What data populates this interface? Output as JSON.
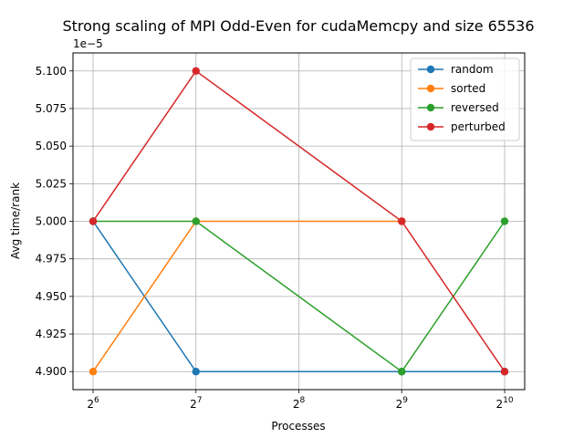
{
  "chart_data": {
    "type": "line",
    "title": "Strong scaling of MPI Odd-Even for cudaMemcpy and size 65536",
    "xlabel": "Processes",
    "ylabel": "Avg time/rank",
    "y_offset_label": "1e−5",
    "x_scale": "log2",
    "x": [
      64,
      128,
      512,
      1024
    ],
    "x_ticks": [
      {
        "value": 64,
        "base": "2",
        "exp": "6"
      },
      {
        "value": 128,
        "base": "2",
        "exp": "7"
      },
      {
        "value": 256,
        "base": "2",
        "exp": "8"
      },
      {
        "value": 512,
        "base": "2",
        "exp": "9"
      },
      {
        "value": 1024,
        "base": "2",
        "exp": "10"
      }
    ],
    "y_ticks": [
      "4.900",
      "4.925",
      "4.950",
      "4.975",
      "5.000",
      "5.025",
      "5.050",
      "5.075",
      "5.100"
    ],
    "ylim": [
      4.888,
      5.112
    ],
    "grid": true,
    "legend_position": "top-right",
    "series": [
      {
        "name": "random",
        "color": "#1f77b4",
        "values": [
          5.0,
          4.9,
          4.9,
          4.9
        ]
      },
      {
        "name": "sorted",
        "color": "#ff7f0e",
        "values": [
          4.9,
          5.0,
          5.0,
          null
        ]
      },
      {
        "name": "reversed",
        "color": "#2ca02c",
        "values": [
          5.0,
          5.0,
          4.9,
          5.0
        ]
      },
      {
        "name": "perturbed",
        "color": "#d62728",
        "values": [
          5.0,
          5.1,
          5.0,
          4.9
        ]
      }
    ]
  }
}
